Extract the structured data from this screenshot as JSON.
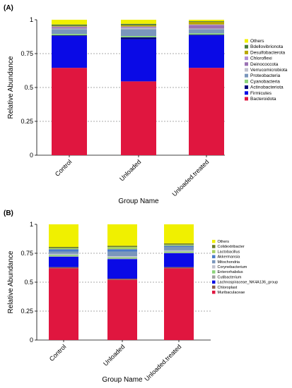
{
  "chart_data": [
    {
      "type": "bar",
      "stacked": true,
      "panel_label": "(A)",
      "xlabel": "Group Name",
      "ylabel": "Relative Abundance",
      "ylim": [
        0,
        1
      ],
      "yticks": [
        "0",
        "0.25",
        "0.5",
        "0.75",
        "1"
      ],
      "grid": "dashed horizontal at 0.25, 0.5, 0.75",
      "legend_position": "right",
      "categories": [
        "Control",
        "Unloaded",
        "Unloaded.treated"
      ],
      "series": [
        {
          "name": "Bacteroidota",
          "color": "#e0163f",
          "values": [
            0.645,
            0.545,
            0.645
          ]
        },
        {
          "name": "Firmicutes",
          "color": "#0a0ae6",
          "values": [
            0.235,
            0.31,
            0.24
          ]
        },
        {
          "name": "Actinobacteriota",
          "color": "#00007a",
          "values": [
            0.005,
            0.015,
            0.005
          ]
        },
        {
          "name": "Cyanobacteria",
          "color": "#8cd47a",
          "values": [
            0.01,
            0.01,
            0.01
          ]
        },
        {
          "name": "Proteobacteria",
          "color": "#7a96bc",
          "values": [
            0.035,
            0.05,
            0.03
          ]
        },
        {
          "name": "Verrucomicrobiota",
          "color": "#c0c0cc",
          "values": [
            0.005,
            0.01,
            0.005
          ]
        },
        {
          "name": "Deinococcota",
          "color": "#9a72b4",
          "values": [
            0.01,
            0.005,
            0.025
          ]
        },
        {
          "name": "Chloroflexi",
          "color": "#b08ed8",
          "values": [
            0.005,
            0.005,
            0.005
          ]
        },
        {
          "name": "Desulfobacterota",
          "color": "#b8a800",
          "values": [
            0.005,
            0.01,
            0.02
          ]
        },
        {
          "name": "Bdellovibrionota",
          "color": "#4a7a3a",
          "values": [
            0.01,
            0.01,
            0.005
          ]
        },
        {
          "name": "Others",
          "color": "#f0f000",
          "values": [
            0.035,
            0.03,
            0.01
          ]
        }
      ]
    },
    {
      "type": "bar",
      "stacked": true,
      "panel_label": "(B)",
      "xlabel": "Group Name",
      "ylabel": "Relative Abundance",
      "ylim": [
        0,
        1
      ],
      "yticks": [
        "0",
        "0.25",
        "0.5",
        "0.75",
        "1"
      ],
      "grid": "dashed horizontal at 0.25, 0.5, 0.75",
      "legend_position": "right",
      "categories": [
        "Control",
        "Unloaded",
        "Unloaded.treated"
      ],
      "series": [
        {
          "name": "Muribaculaceae",
          "color": "#e0163f",
          "values": [
            0.62,
            0.52,
            0.62
          ]
        },
        {
          "name": "Chloroplast",
          "color": "#8a5a4a",
          "values": [
            0.01,
            0.01,
            0.01
          ]
        },
        {
          "name": "Lachnospiraceae_NK4A136_group",
          "color": "#0a0ae6",
          "values": [
            0.09,
            0.17,
            0.12
          ]
        },
        {
          "name": "Cutibacterium",
          "color": "#a0a0a0",
          "values": [
            0.005,
            0.005,
            0.005
          ]
        },
        {
          "name": "Enterorhabdus",
          "color": "#8cd47a",
          "values": [
            0.01,
            0.01,
            0.01
          ]
        },
        {
          "name": "Corynebacterium",
          "color": "#c0c0cc",
          "values": [
            0.01,
            0.01,
            0.01
          ]
        },
        {
          "name": "Mitochondria",
          "color": "#7a96bc",
          "values": [
            0.02,
            0.04,
            0.03
          ]
        },
        {
          "name": "Akkermansia",
          "color": "#4a7ac8",
          "values": [
            0.02,
            0.02,
            0.01
          ]
        },
        {
          "name": "Lactobacillus",
          "color": "#a8d060",
          "values": [
            0.01,
            0.02,
            0.01
          ]
        },
        {
          "name": "Colidextribacter",
          "color": "#6a7a2a",
          "values": [
            0.01,
            0.01,
            0.01
          ]
        },
        {
          "name": "Others",
          "color": "#f0f000",
          "values": [
            0.195,
            0.185,
            0.165
          ]
        }
      ]
    }
  ]
}
